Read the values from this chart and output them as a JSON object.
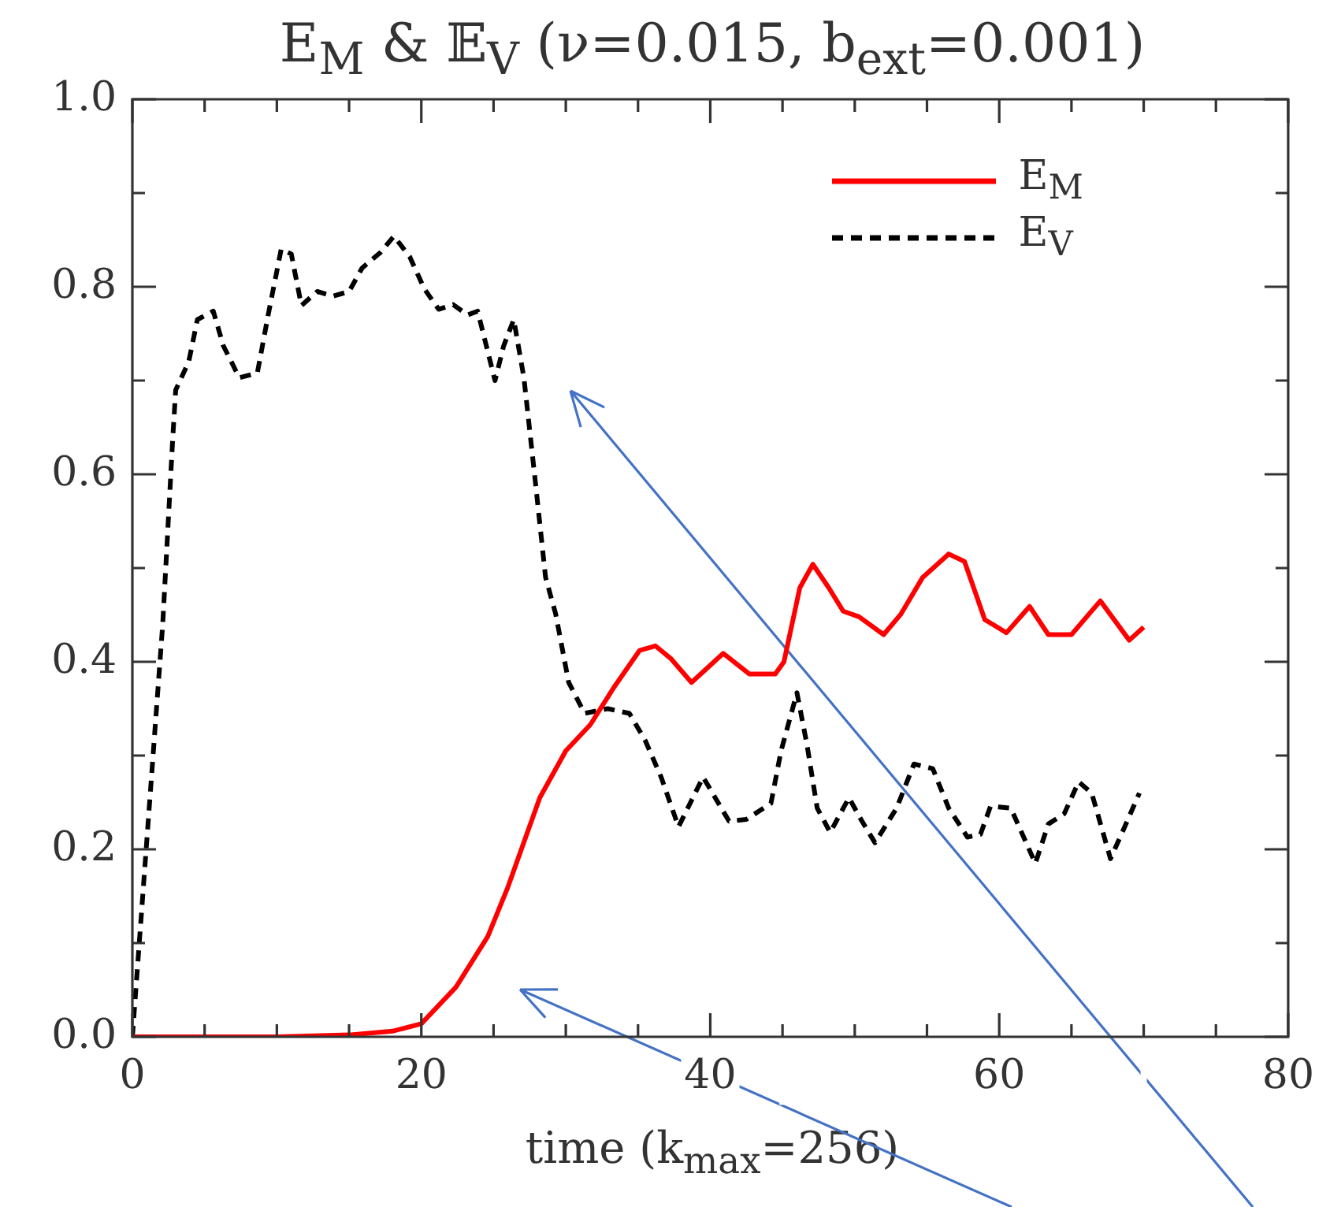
{
  "chart_data": {
    "type": "line",
    "title": "E$_{M}$ & 𝔼$_{V}$ (ν=0.015, b$_{ext}$=0.001)",
    "xlabel": "time (k$_{max}$=256)",
    "xlim": [
      0,
      80
    ],
    "ylim": [
      0,
      1
    ],
    "xticks": [
      0,
      {
        "value": 5,
        "label": null
      },
      {
        "value": 10,
        "label": null
      },
      {
        "value": 15,
        "label": null
      },
      20,
      {
        "value": 25,
        "label": null
      },
      {
        "value": 30,
        "label": null
      },
      {
        "value": 35,
        "label": null
      },
      40,
      {
        "value": 45,
        "label": null
      },
      {
        "value": 50,
        "label": null
      },
      {
        "value": 55,
        "label": null
      },
      60,
      {
        "value": 65,
        "label": null
      },
      {
        "value": 70,
        "label": null
      },
      {
        "value": 75,
        "label": null
      },
      80
    ],
    "yticks": [
      {
        "value": 0,
        "label": "0.0"
      },
      {
        "value": 0.1,
        "label": null
      },
      {
        "value": 0.2,
        "label": "0.2"
      },
      {
        "value": 0.3,
        "label": null
      },
      {
        "value": 0.4,
        "label": "0.4"
      },
      {
        "value": 0.5,
        "label": null
      },
      {
        "value": 0.6,
        "label": "0.6"
      },
      {
        "value": 0.7,
        "label": null
      },
      {
        "value": 0.8,
        "label": "0.8"
      },
      {
        "value": 0.9,
        "label": null
      },
      {
        "value": 1,
        "label": "1.0"
      }
    ],
    "grid": false,
    "legend": "top right",
    "series": [
      {
        "name": "E$_{M}$",
        "color": "#ff0000",
        "line_style": "solid",
        "x": [
          0,
          10,
          15,
          18,
          20,
          22.4,
          24.6,
          26,
          28.2,
          30,
          31.7,
          33.3,
          35.1,
          36.2,
          37.3,
          38.7,
          40.9,
          42.7,
          44.5,
          45.1,
          46.2,
          47.1,
          48.2,
          49.2,
          50.3,
          52,
          53.2,
          54.7,
          56.5,
          57.6,
          59,
          60.5,
          62.1,
          63.4,
          65,
          67,
          69,
          70
        ],
        "values": [
          0,
          0,
          0.002,
          0.006,
          0.014,
          0.053,
          0.107,
          0.16,
          0.255,
          0.305,
          0.333,
          0.372,
          0.412,
          0.417,
          0.403,
          0.378,
          0.409,
          0.387,
          0.387,
          0.4,
          0.479,
          0.504,
          0.479,
          0.454,
          0.448,
          0.429,
          0.451,
          0.49,
          0.515,
          0.507,
          0.445,
          0.431,
          0.459,
          0.429,
          0.429,
          0.465,
          0.423,
          0.437
        ]
      },
      {
        "name": "E$_{V}$",
        "color": "#000000",
        "line_style": "dashed",
        "x": [
          0,
          2.1,
          2.8,
          3,
          3.9,
          4.5,
          5.6,
          6.3,
          7.4,
          8.65,
          9.4,
          10.3,
          11,
          11.7,
          12.8,
          13.9,
          15,
          15.9,
          17.2,
          18.1,
          19.2,
          20.2,
          21.2,
          22.2,
          23.2,
          23.9,
          25.1,
          25.7,
          26.4,
          27.1,
          27.9,
          28.6,
          29.3,
          30.2,
          31.3,
          32.9,
          34.4,
          35.5,
          36.6,
          37.8,
          39.5,
          41.3,
          42.5,
          44.2,
          44.9,
          46,
          46.7,
          47.4,
          48.3,
          49.6,
          50.5,
          51.4,
          52.9,
          54.1,
          55.4,
          56.5,
          57.8,
          58.7,
          59.4,
          60.8,
          62.5,
          63.4,
          64.5,
          65.5,
          66.4,
          67.7,
          68.6,
          69.7
        ],
        "values": [
          0,
          0.44,
          0.64,
          0.69,
          0.72,
          0.765,
          0.774,
          0.737,
          0.703,
          0.708,
          0.77,
          0.84,
          0.835,
          0.78,
          0.795,
          0.79,
          0.795,
          0.82,
          0.837,
          0.854,
          0.832,
          0.798,
          0.776,
          0.781,
          0.77,
          0.774,
          0.7,
          0.737,
          0.765,
          0.703,
          0.591,
          0.49,
          0.451,
          0.378,
          0.345,
          0.35,
          0.345,
          0.316,
          0.277,
          0.224,
          0.277,
          0.23,
          0.232,
          0.249,
          0.305,
          0.367,
          0.311,
          0.244,
          0.218,
          0.255,
          0.23,
          0.207,
          0.244,
          0.291,
          0.286,
          0.244,
          0.213,
          0.216,
          0.246,
          0.244,
          0.185,
          0.227,
          0.238,
          0.272,
          0.26,
          0.19,
          0.221,
          0.26
        ]
      }
    ]
  }
}
